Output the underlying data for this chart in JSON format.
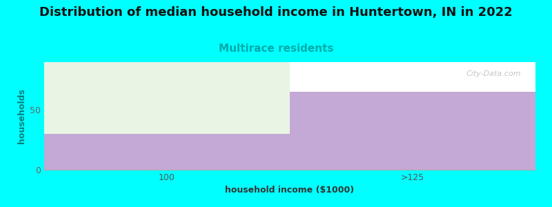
{
  "title": "Distribution of median household income in Huntertown, IN in 2022",
  "subtitle": "Multirace residents",
  "xlabel": "household income ($1000)",
  "ylabel": "households",
  "background_color": "#00FFFF",
  "plot_bg_color": "#FFFFFF",
  "bar_categories": [
    "100",
    ">125"
  ],
  "bar_purple_values": [
    30,
    65
  ],
  "bar_green_values": [
    90,
    0
  ],
  "bar_max": 90,
  "bar_color_purple": "#C4A8D5",
  "bar_color_green": "#E8F5E4",
  "yticks": [
    0,
    50
  ],
  "ytick_labels": [
    "0",
    "50"
  ],
  "grid_color": "#FFB6C1",
  "watermark": "City-Data.com",
  "title_fontsize": 13,
  "subtitle_fontsize": 11,
  "label_fontsize": 9,
  "tick_fontsize": 9,
  "x_positions": [
    0.25,
    0.75
  ],
  "bar_width": 0.5
}
